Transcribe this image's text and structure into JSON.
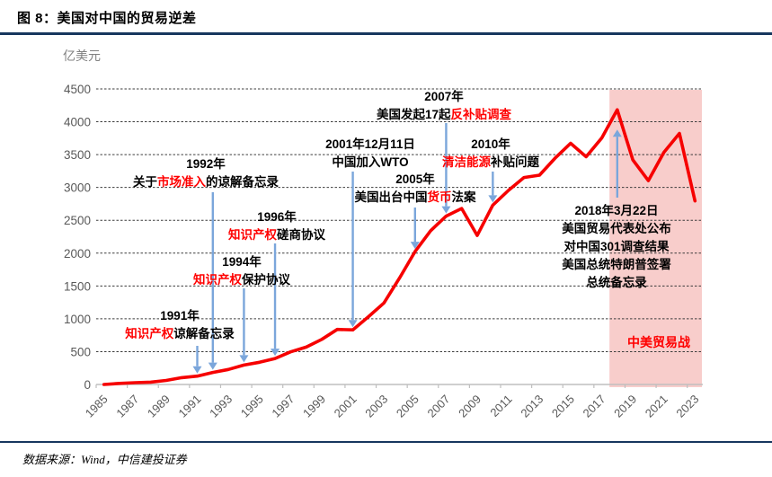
{
  "header": {
    "title": "图 8：美国对中国的贸易逆差"
  },
  "chart": {
    "unit_label": "亿美元"
  },
  "footer": {
    "source": "数据来源：Wind，中信建投证券"
  },
  "colors": {
    "line": "#F60000",
    "band": "#F8CDCB",
    "arrow": "#7BA6DB",
    "red_text": "#FF0000",
    "rule": "#17375E",
    "axis_label": "#595959",
    "grid": "#3D3D3D",
    "axis_line": "#BFBFBF",
    "unit_label": "#808080"
  },
  "chart_data": {
    "type": "line",
    "title": "美国对中国的贸易逆差",
    "ylabel": "亿美元",
    "xlabel": "",
    "ylim": [
      0,
      4500
    ],
    "ytick_step": 500,
    "yticks": [
      0,
      500,
      1000,
      1500,
      2000,
      2500,
      3000,
      3500,
      4000,
      4500
    ],
    "grid": "dashed-horizontal",
    "legend": "none",
    "x": [
      1985,
      1986,
      1987,
      1988,
      1989,
      1990,
      1991,
      1992,
      1993,
      1994,
      1995,
      1996,
      1997,
      1998,
      1999,
      2000,
      2001,
      2002,
      2003,
      2004,
      2005,
      2006,
      2007,
      2008,
      2009,
      2010,
      2011,
      2012,
      2013,
      2014,
      2015,
      2016,
      2017,
      2018,
      2019,
      2020,
      2021,
      2022,
      2023
    ],
    "values": [
      0,
      17,
      28,
      35,
      62,
      104,
      127,
      183,
      228,
      295,
      338,
      395,
      497,
      569,
      687,
      838,
      831,
      1031,
      1240,
      1620,
      2023,
      2340,
      2563,
      2680,
      2269,
      2730,
      2955,
      3151,
      3187,
      3446,
      3672,
      3468,
      3752,
      4182,
      3421,
      3103,
      3534,
      3823,
      2794
    ],
    "x_tick_labels": [
      "1985",
      "1987",
      "1989",
      "1991",
      "1993",
      "1995",
      "1997",
      "1999",
      "2001",
      "2003",
      "2005",
      "2007",
      "2009",
      "2011",
      "2013",
      "2015",
      "2017",
      "2019",
      "2021",
      "2023"
    ],
    "highlight_band": {
      "start_year": 2018,
      "end": "axis-right-edge",
      "label": "中美贸易战"
    },
    "annotations": [
      {
        "id": "1991",
        "year": 1991,
        "dir": "down",
        "lines": [
          [
            {
              "t": "1991年"
            }
          ],
          [
            {
              "t": "知识产权",
              "red": true
            },
            {
              "t": "谅解备忘录"
            }
          ]
        ]
      },
      {
        "id": "1992",
        "year": 1992,
        "dir": "down",
        "lines": [
          [
            {
              "t": "1992年"
            }
          ],
          [
            {
              "t": "关于"
            },
            {
              "t": "市场准入",
              "red": true
            },
            {
              "t": "的谅解备忘录"
            }
          ]
        ]
      },
      {
        "id": "1994",
        "year": 1994,
        "dir": "down",
        "lines": [
          [
            {
              "t": "1994年"
            }
          ],
          [
            {
              "t": "知识产权",
              "red": true
            },
            {
              "t": "保护协议"
            }
          ]
        ]
      },
      {
        "id": "1996",
        "year": 1996,
        "dir": "down",
        "lines": [
          [
            {
              "t": "1996年"
            }
          ],
          [
            {
              "t": "知识产权",
              "red": true
            },
            {
              "t": "磋商协议"
            }
          ]
        ]
      },
      {
        "id": "2001",
        "year": 2001,
        "dir": "down",
        "lines": [
          [
            {
              "t": "2001年12月11日"
            }
          ],
          [
            {
              "t": "中国加入WTO"
            }
          ]
        ]
      },
      {
        "id": "2005",
        "year": 2005,
        "dir": "down",
        "lines": [
          [
            {
              "t": "2005年"
            }
          ],
          [
            {
              "t": "美国出台中国"
            },
            {
              "t": "货币",
              "red": true
            },
            {
              "t": "法案"
            }
          ]
        ]
      },
      {
        "id": "2007",
        "year": 2007,
        "dir": "down",
        "lines": [
          [
            {
              "t": "2007年"
            }
          ],
          [
            {
              "t": "美国发起17起"
            },
            {
              "t": "反补贴调查",
              "red": true
            }
          ]
        ]
      },
      {
        "id": "2010",
        "year": 2010,
        "dir": "down",
        "lines": [
          [
            {
              "t": "2010年"
            }
          ],
          [
            {
              "t": "清洁能源",
              "red": true
            },
            {
              "t": "补贴问题"
            }
          ]
        ]
      },
      {
        "id": "2018",
        "year": 2018,
        "dir": "up",
        "lines": [
          [
            {
              "t": "2018年3月22日"
            }
          ],
          [
            {
              "t": "美国贸易代表处公布"
            }
          ],
          [
            {
              "t": "对中国301调查结果"
            }
          ],
          [
            {
              "t": "美国总统特朗普签署"
            }
          ],
          [
            {
              "t": "总统备忘录"
            }
          ]
        ]
      }
    ]
  }
}
